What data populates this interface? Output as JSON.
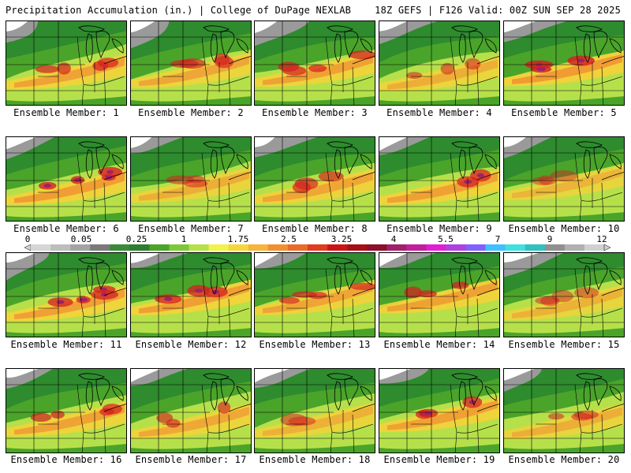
{
  "header": {
    "title_left": "Precipitation Accumulation (in.) | College of DuPage NEXLAB",
    "title_right": "18Z GEFS | F126 Valid: 00Z SUN SEP 28 2025"
  },
  "members": [
    {
      "caption": "Ensemble Member: 1",
      "intensity": 0.78
    },
    {
      "caption": "Ensemble Member: 2",
      "intensity": 0.72
    },
    {
      "caption": "Ensemble Member: 3",
      "intensity": 0.8
    },
    {
      "caption": "Ensemble Member: 4",
      "intensity": 0.62
    },
    {
      "caption": "Ensemble Member: 5",
      "intensity": 0.92
    },
    {
      "caption": "Ensemble Member: 6",
      "intensity": 0.88
    },
    {
      "caption": "Ensemble Member: 7",
      "intensity": 0.6
    },
    {
      "caption": "Ensemble Member: 8",
      "intensity": 0.74
    },
    {
      "caption": "Ensemble Member: 9",
      "intensity": 0.82
    },
    {
      "caption": "Ensemble Member: 10",
      "intensity": 0.5
    },
    {
      "caption": "Ensemble Member: 11",
      "intensity": 0.84
    },
    {
      "caption": "Ensemble Member: 12",
      "intensity": 0.86
    },
    {
      "caption": "Ensemble Member: 13",
      "intensity": 0.76
    },
    {
      "caption": "Ensemble Member: 14",
      "intensity": 0.8
    },
    {
      "caption": "Ensemble Member: 15",
      "intensity": 0.55
    },
    {
      "caption": "Ensemble Member: 16",
      "intensity": 0.78
    },
    {
      "caption": "Ensemble Member: 17",
      "intensity": 0.7
    },
    {
      "caption": "Ensemble Member: 18",
      "intensity": 0.58
    },
    {
      "caption": "Ensemble Member: 19",
      "intensity": 0.82
    },
    {
      "caption": "Ensemble Member: 20",
      "intensity": 0.6
    }
  ],
  "colorbar": {
    "tick_labels": [
      "0",
      "0.05",
      "0.25",
      "1",
      "1.75",
      "2.5",
      "3.25",
      "4",
      "5.5",
      "7",
      "9",
      "12"
    ],
    "colors": [
      "#d6d6d6",
      "#bdbdbd",
      "#a3a3a3",
      "#7a7a7a",
      "#3a8a3a",
      "#2e7d32",
      "#4aa42a",
      "#7cc83a",
      "#b6e04a",
      "#f2f24a",
      "#f7d63c",
      "#f5b43a",
      "#f08f32",
      "#ea6a28",
      "#e03c1e",
      "#cc1414",
      "#a50f15",
      "#8b0f2a",
      "#a0206a",
      "#c0209a",
      "#e020d0",
      "#b040e0",
      "#8060ff",
      "#40c0ff",
      "#40e0e0",
      "#30c0c0",
      "#909090",
      "#b0b0b0",
      "#d0d0d0"
    ]
  }
}
